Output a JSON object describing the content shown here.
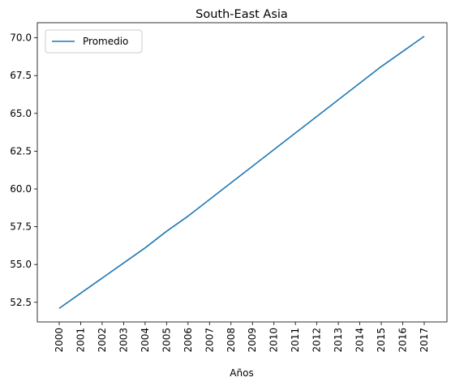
{
  "chart_data": {
    "type": "line",
    "title": "South-East Asia",
    "xlabel": "Años",
    "ylabel": "",
    "x": [
      "2000",
      "2001",
      "2002",
      "2003",
      "2004",
      "2005",
      "2006",
      "2007",
      "2008",
      "2009",
      "2010",
      "2011",
      "2012",
      "2013",
      "2014",
      "2015",
      "2016",
      "2017"
    ],
    "series": [
      {
        "name": "Promedio",
        "color": "#1f77b4",
        "values": [
          52.1,
          53.1,
          54.1,
          55.1,
          56.1,
          57.2,
          58.2,
          59.3,
          60.4,
          61.5,
          62.6,
          63.7,
          64.8,
          65.9,
          67.0,
          68.1,
          69.1,
          70.1
        ]
      }
    ],
    "yticks": [
      "52.5",
      "55.0",
      "57.5",
      "60.0",
      "62.5",
      "65.0",
      "67.5",
      "70.0"
    ],
    "ylim": [
      51.2,
      71.0
    ],
    "grid": false,
    "legend_position": "top-left"
  }
}
